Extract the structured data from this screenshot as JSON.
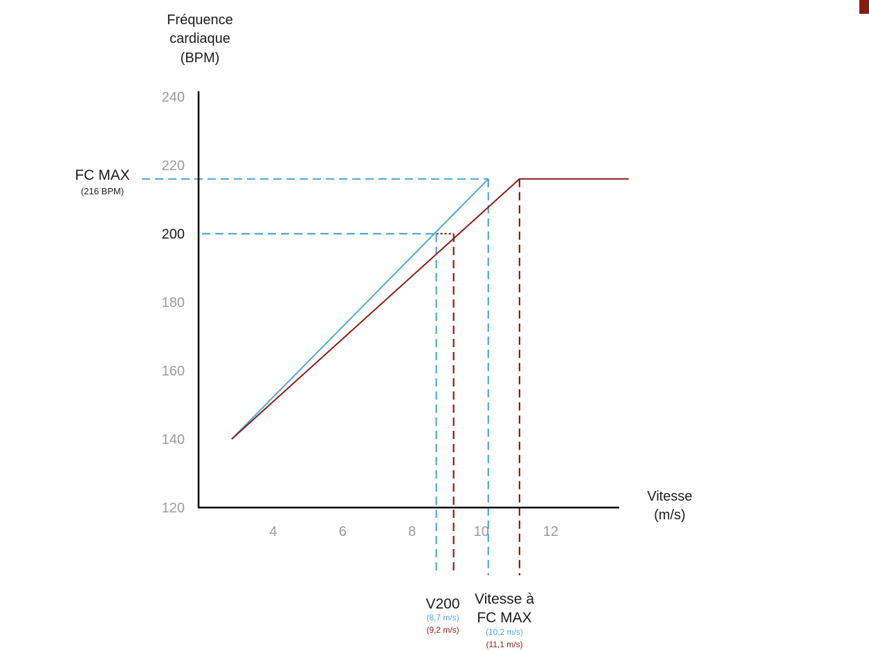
{
  "chart_data": {
    "type": "line",
    "title": "",
    "ylabel": [
      "Fréquence",
      "cardiaque",
      "(BPM)"
    ],
    "xlabel": [
      "Vitesse",
      "(m/s)"
    ],
    "ylim": [
      120,
      240
    ],
    "xlim": [
      2,
      14
    ],
    "y_ticks": [
      {
        "value": 120,
        "label": "120"
      },
      {
        "value": 140,
        "label": "140"
      },
      {
        "value": 160,
        "label": "160"
      },
      {
        "value": 180,
        "label": "180"
      },
      {
        "value": 200,
        "label": "200"
      },
      {
        "value": 220,
        "label": "220"
      },
      {
        "value": 240,
        "label": "240"
      }
    ],
    "x_ticks": [
      {
        "value": 4,
        "label": "4"
      },
      {
        "value": 6,
        "label": "6"
      },
      {
        "value": 8,
        "label": "8"
      },
      {
        "value": 10,
        "label": "10"
      },
      {
        "value": 12,
        "label": "12"
      }
    ],
    "colors": {
      "blue": "#4aa8dd",
      "red": "#8b1a14",
      "tick": "#9a9a9a",
      "text": "#1a1a1a"
    },
    "series": [
      {
        "name": "blue",
        "color": "#4aa8dd",
        "x": [
          2.8,
          10.2
        ],
        "y": [
          140,
          216
        ]
      },
      {
        "name": "red",
        "color": "#8b1a14",
        "x": [
          2.8,
          11.1,
          14.25
        ],
        "y": [
          140,
          216,
          216
        ]
      }
    ],
    "reference_lines": {
      "fc_max": {
        "value": 216,
        "color": "#4aa8dd"
      },
      "bpm_200": {
        "value": 200,
        "color": "#4aa8dd"
      },
      "v200_blue": {
        "value": 8.7,
        "color": "#4aa8dd"
      },
      "v200_red": {
        "value": 9.2,
        "color": "#8b1a14"
      },
      "vfcmax_blue": {
        "value": 10.2,
        "color": "#4aa8dd"
      },
      "vfcmax_red": {
        "value": 11.1,
        "color": "#8b1a14"
      }
    },
    "annotations": {
      "fc_max_label": "FC MAX",
      "fc_max_value": "(216 BPM)",
      "tick_200_label": "200",
      "v200_label": "V200",
      "v200_blue": "(8,7 m/s)",
      "v200_red": "(9,2 m/s)",
      "vfcmax_label": [
        "Vitesse à",
        "FC MAX"
      ],
      "vfcmax_blue": "(10,2 m/s)",
      "vfcmax_red": "(11,1 m/s)"
    }
  }
}
